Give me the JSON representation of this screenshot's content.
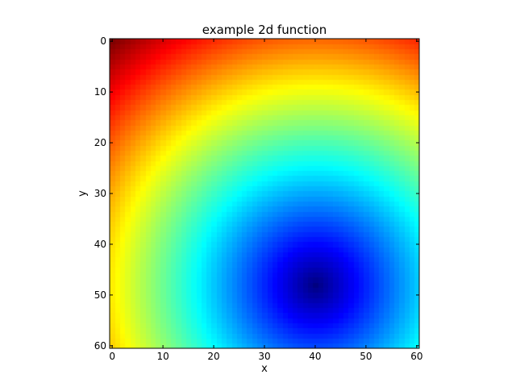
{
  "chart_data": {
    "type": "heatmap",
    "title": "example 2d function",
    "xlabel": "x",
    "ylabel": "y",
    "xlim": [
      0,
      60
    ],
    "ylim": [
      60,
      0
    ],
    "x_ticks": [
      0,
      10,
      20,
      30,
      40,
      50,
      60
    ],
    "y_ticks": [
      0,
      10,
      20,
      30,
      40,
      50,
      60
    ],
    "grid_size": [
      61,
      61
    ],
    "y_axis_inverted": true,
    "colormap": "jet",
    "minimum_at": [
      40,
      48
    ],
    "maximum_at": [
      0,
      0
    ],
    "grid": false,
    "legend": "none"
  },
  "colors": {
    "background": "#ffffff",
    "axes": "#000000",
    "low": "#00007f",
    "high": "#7f0000"
  }
}
